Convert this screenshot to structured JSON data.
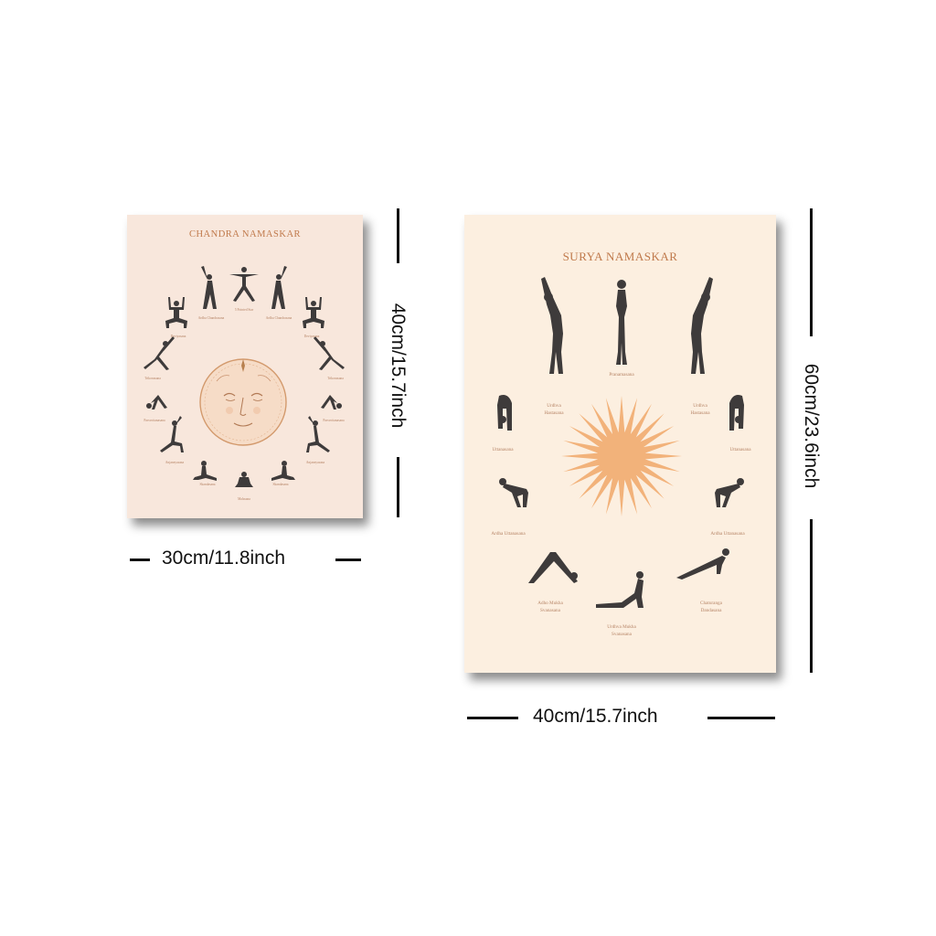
{
  "posters": {
    "chandra": {
      "title": "CHANDRA NAMASKAR",
      "labels": [
        "5 Pointed Star",
        "Ardha Chandrasana",
        "Ardha Chandrasana",
        "Deviyasana",
        "Deviyasana",
        "Trikonasana",
        "Trikonasana",
        "Parsvottanasana",
        "Parsvottanasana",
        "Anjaneyasana",
        "Anjaneyasana",
        "Skandasana",
        "Skandasana",
        "Malasana"
      ],
      "width_label": "30cm/11.8inch",
      "height_label": "40cm/15.7inch"
    },
    "surya": {
      "title": "SURYA NAMASKAR",
      "labels": {
        "center_top": "Pranamasana",
        "left_urdhva": [
          "Urdhva",
          "Hastasana"
        ],
        "right_urdhva": [
          "Urdhva",
          "Hastasana"
        ],
        "left_uttanasana": "Uttanasana",
        "right_uttanasana": "Uttanasana",
        "left_ardha": "Ardha Uttanasana",
        "right_ardha": "Ardha Uttanasana",
        "adho": [
          "Adho Mukha",
          "Svanasana"
        ],
        "chaturanga": [
          "Chaturanga",
          "Dandasana"
        ],
        "urdhva_mukha": [
          "Urdhva Mukha",
          "Svanasana"
        ]
      },
      "width_label": "40cm/15.7inch",
      "height_label": "60cm/23.6inch"
    }
  },
  "colors": {
    "accent": "#c07a4c",
    "sun": "#f2b27a",
    "silhouette": "#3e3b3b"
  }
}
